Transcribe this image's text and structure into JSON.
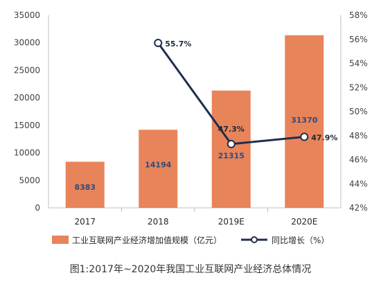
{
  "chart_data": {
    "type": "bar+line",
    "categories": [
      "2017",
      "2018",
      "2019E",
      "2020E"
    ],
    "series": [
      {
        "name": "工业互联网产业经济增加值规模（亿元）",
        "type": "bar",
        "axis": "left",
        "values": [
          8383,
          14194,
          21315,
          31370
        ],
        "labels": [
          "8383",
          "14194",
          "21315",
          "31370"
        ],
        "color": "#e8845a"
      },
      {
        "name": "同比增长（%）",
        "type": "line",
        "axis": "right",
        "x": [
          "2018",
          "2019E",
          "2020E"
        ],
        "values": [
          55.7,
          47.3,
          47.9
        ],
        "labels": [
          "55.7%",
          "47.3%",
          "47.9%"
        ],
        "color": "#1f2d4e"
      }
    ],
    "y_left": {
      "ylim": [
        0,
        35000
      ],
      "ticks": [
        0,
        5000,
        10000,
        15000,
        20000,
        25000,
        30000,
        35000
      ],
      "tick_labels": [
        "0",
        "5000",
        "10000",
        "15000",
        "20000",
        "25000",
        "30000",
        "35000"
      ]
    },
    "y_right": {
      "ylim": [
        42,
        58
      ],
      "ticks": [
        42,
        44,
        46,
        48,
        50,
        52,
        54,
        56,
        58
      ],
      "tick_labels": [
        "42%",
        "44%",
        "46%",
        "48%",
        "50%",
        "52%",
        "54%",
        "56%",
        "58%"
      ]
    },
    "grid": false,
    "legend_position": "bottom",
    "caption": "图1:2017年~2020年我国工业互联网产业经济总体情况"
  }
}
